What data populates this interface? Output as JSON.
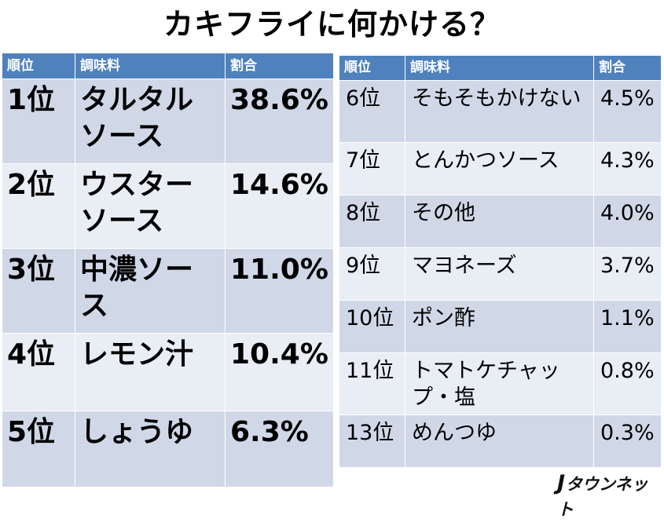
{
  "title": "カキフライに何かける？",
  "headers": {
    "rank": "順位",
    "condiment": "調味料",
    "share": "割合"
  },
  "left_rows": [
    {
      "rank": "1位",
      "condiment": "タルタルソース",
      "share": "38.6%"
    },
    {
      "rank": "2位",
      "condiment": "ウスターソース",
      "share": "14.6%"
    },
    {
      "rank": "3位",
      "condiment": "中濃ソース",
      "share": "11.0%"
    },
    {
      "rank": "4位",
      "condiment": "レモン汁",
      "share": "10.4%"
    },
    {
      "rank": "5位",
      "condiment": "しょうゆ",
      "share": "6.3%"
    }
  ],
  "right_rows": [
    {
      "rank": "6位",
      "condiment": "そもそもかけない",
      "share": "4.5%"
    },
    {
      "rank": "7位",
      "condiment": "とんかつソース",
      "share": "4.3%"
    },
    {
      "rank": "8位",
      "condiment": "その他",
      "share": "4.0%"
    },
    {
      "rank": "9位",
      "condiment": "マヨネーズ",
      "share": "3.7%"
    },
    {
      "rank": "10位",
      "condiment": "ポン酢",
      "share": "1.1%"
    },
    {
      "rank": "11位",
      "condiment": "トマトケチャップ・塩",
      "share": "0.8%"
    },
    {
      "rank": "13位",
      "condiment": "めんつゆ",
      "share": "0.3%"
    }
  ],
  "logo": {
    "mark": "J",
    "text": "タウンネット"
  },
  "colors": {
    "header_bg": "#4f81bd",
    "row_odd": "#d0d8e8",
    "row_even": "#e9edf4"
  }
}
